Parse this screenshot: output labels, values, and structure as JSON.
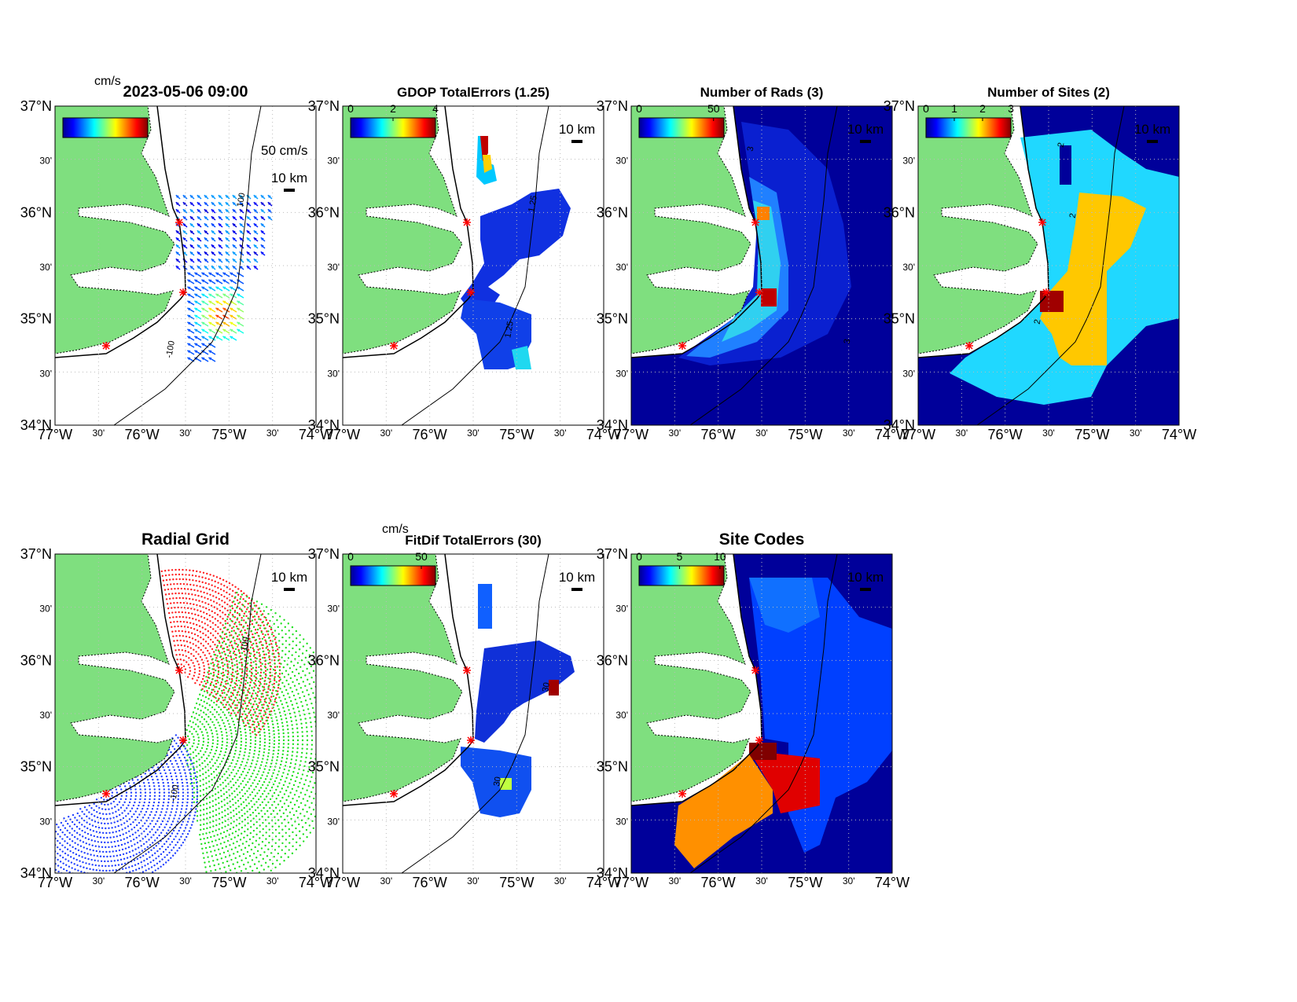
{
  "figure": {
    "lat_labels": [
      "37°N",
      "30'",
      "36°N",
      "30'",
      "35°N",
      "30'",
      "34°N"
    ],
    "lon_labels": [
      "77°W",
      "30'",
      "76°W",
      "30'",
      "75°W",
      "30'",
      "74°W"
    ],
    "panels": [
      {
        "title": "2023-05-06 09:00",
        "colorbar": {
          "unit": "cm/s"
        },
        "vector_scale": "50 cm/s",
        "scale_bar": "10 km",
        "contours": [
          "100",
          "-100"
        ]
      },
      {
        "title": "GDOP TotalErrors (1.25)",
        "colorbar": {
          "ticks": [
            0,
            2,
            4
          ],
          "lim": [
            0,
            4
          ]
        },
        "scale_bar": "10 km",
        "contours": [
          "1.25",
          "1.25"
        ]
      },
      {
        "title": "Number of Rads (3)",
        "colorbar": {
          "ticks": [
            0,
            50
          ],
          "lim": [
            0,
            57
          ]
        },
        "scale_bar": "10 km",
        "contours": [
          "3",
          "3"
        ]
      },
      {
        "title": "Number of Sites (2)",
        "colorbar": {
          "ticks": [
            0,
            1,
            2,
            3
          ],
          "lim": [
            0,
            3
          ]
        },
        "scale_bar": "10 km",
        "contours": [
          "2",
          "2",
          "2"
        ]
      },
      {
        "title": "Radial Grid",
        "scale_bar": "10 km",
        "contours": [
          "100",
          "-100"
        ]
      },
      {
        "title": "FitDif TotalErrors (30)",
        "colorbar": {
          "unit": "cm/s",
          "ticks": [
            0,
            50
          ],
          "lim": [
            0,
            60
          ]
        },
        "scale_bar": "10 km",
        "contours": [
          "30",
          "30"
        ]
      },
      {
        "title": "Site Codes",
        "colorbar": {
          "ticks": [
            0,
            5,
            10
          ],
          "lim": [
            0,
            10.5
          ]
        },
        "scale_bar": "10 km"
      }
    ]
  }
}
